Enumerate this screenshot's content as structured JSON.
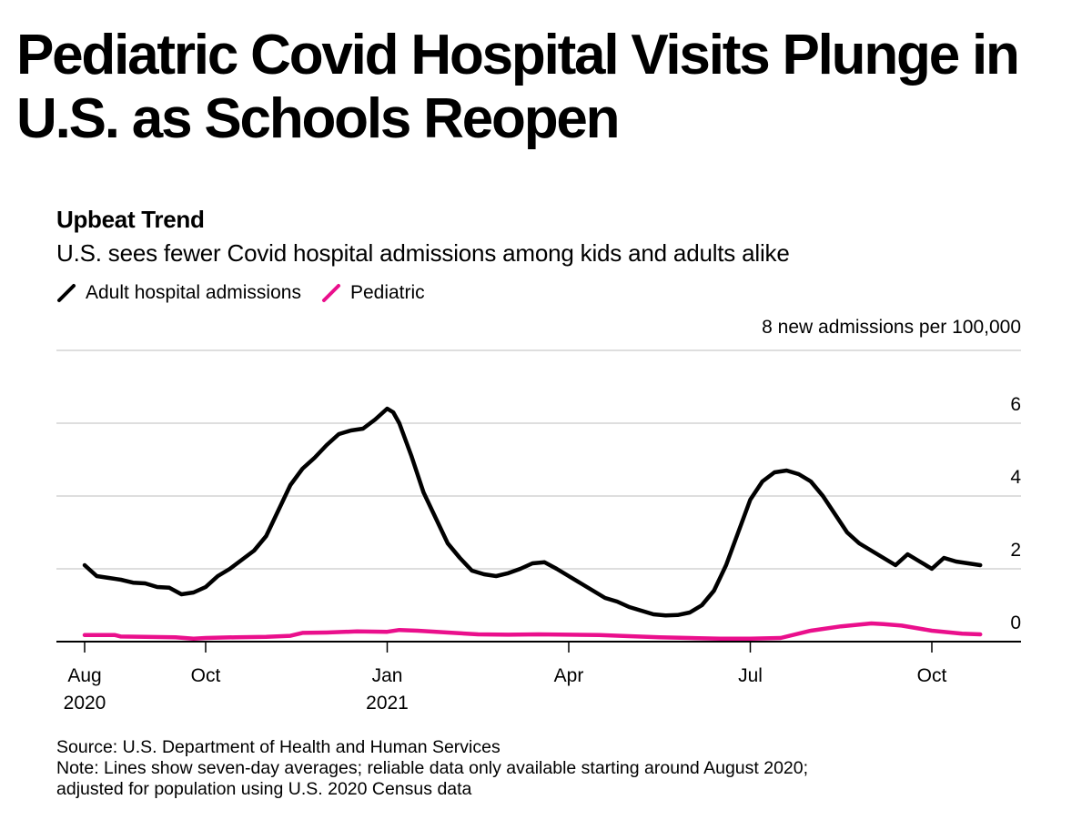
{
  "headline": "Pediatric Covid Hospital Visits Plunge in U.S. as Schools Reopen",
  "chart_data": {
    "type": "line",
    "title": "Upbeat Trend",
    "subtitle": "U.S. sees fewer Covid hospital admissions among kids and adults alike",
    "ylabel": "8 new admissions per 100,000",
    "xlabel": "",
    "ylim": [
      0,
      8
    ],
    "yticks": [
      0,
      2,
      4,
      6
    ],
    "xlim": [
      0,
      15.3
    ],
    "xticks": [
      {
        "x": 0,
        "label": "Aug",
        "label2": "2020"
      },
      {
        "x": 2,
        "label": "Oct",
        "label2": ""
      },
      {
        "x": 5,
        "label": "Jan",
        "label2": "2021"
      },
      {
        "x": 8,
        "label": "Apr",
        "label2": ""
      },
      {
        "x": 11,
        "label": "Jul",
        "label2": ""
      },
      {
        "x": 14,
        "label": "Oct",
        "label2": ""
      }
    ],
    "x_unit": "months since Aug 2020",
    "grid": true,
    "legend_position": "top-left",
    "series": [
      {
        "name": "Adult hospital admissions",
        "color": "#000000",
        "x": [
          0,
          0.2,
          0.4,
          0.6,
          0.8,
          1.0,
          1.2,
          1.4,
          1.6,
          1.8,
          2.0,
          2.2,
          2.4,
          2.6,
          2.8,
          3.0,
          3.2,
          3.4,
          3.6,
          3.8,
          4.0,
          4.2,
          4.4,
          4.6,
          4.8,
          5.0,
          5.1,
          5.2,
          5.4,
          5.6,
          5.8,
          6.0,
          6.2,
          6.4,
          6.6,
          6.8,
          7.0,
          7.2,
          7.4,
          7.6,
          7.8,
          8.0,
          8.2,
          8.4,
          8.6,
          8.8,
          9.0,
          9.2,
          9.4,
          9.6,
          9.8,
          10.0,
          10.2,
          10.4,
          10.6,
          10.8,
          11.0,
          11.2,
          11.4,
          11.6,
          11.8,
          12.0,
          12.2,
          12.4,
          12.6,
          12.8,
          13.0,
          13.2,
          13.4,
          13.6,
          13.8,
          14.0,
          14.2,
          14.4,
          14.6,
          14.8
        ],
        "values": [
          2.1,
          1.8,
          1.75,
          1.7,
          1.62,
          1.6,
          1.5,
          1.48,
          1.3,
          1.35,
          1.5,
          1.8,
          2.0,
          2.25,
          2.5,
          2.9,
          3.6,
          4.3,
          4.75,
          5.05,
          5.4,
          5.7,
          5.8,
          5.85,
          6.1,
          6.4,
          6.3,
          6.0,
          5.1,
          4.1,
          3.4,
          2.7,
          2.3,
          1.95,
          1.85,
          1.8,
          1.88,
          2.0,
          2.15,
          2.18,
          2.0,
          1.8,
          1.6,
          1.4,
          1.2,
          1.1,
          0.95,
          0.85,
          0.75,
          0.72,
          0.73,
          0.8,
          1.0,
          1.4,
          2.1,
          3.0,
          3.9,
          4.4,
          4.65,
          4.7,
          4.6,
          4.4,
          4.0,
          3.5,
          3.0,
          2.7,
          2.5,
          2.3,
          2.1,
          2.4,
          2.2,
          2.0,
          2.3,
          2.2,
          2.15,
          2.1
        ]
      },
      {
        "name": "Pediatric",
        "color": "#ea0f8c",
        "x": [
          0,
          0.5,
          0.6,
          1.0,
          1.5,
          1.8,
          2.0,
          2.5,
          3.0,
          3.4,
          3.6,
          4.0,
          4.5,
          5.0,
          5.2,
          5.5,
          6.0,
          6.5,
          7.0,
          7.5,
          8.0,
          8.5,
          9.0,
          9.5,
          10.0,
          10.5,
          11.0,
          11.5,
          12.0,
          12.5,
          13.0,
          13.2,
          13.5,
          14.0,
          14.5,
          14.8
        ],
        "values": [
          0.18,
          0.18,
          0.14,
          0.13,
          0.12,
          0.08,
          0.1,
          0.12,
          0.13,
          0.16,
          0.24,
          0.25,
          0.28,
          0.27,
          0.32,
          0.3,
          0.25,
          0.2,
          0.19,
          0.2,
          0.19,
          0.18,
          0.15,
          0.12,
          0.1,
          0.08,
          0.08,
          0.1,
          0.3,
          0.42,
          0.5,
          0.48,
          0.44,
          0.3,
          0.22,
          0.2
        ]
      }
    ]
  },
  "source_note": "Source: U.S. Department of Health and Human Services",
  "note_line1": "Note: Lines show seven-day averages; reliable data only available starting around August 2020;",
  "note_line2": "adjusted for population using U.S. 2020 Census data"
}
